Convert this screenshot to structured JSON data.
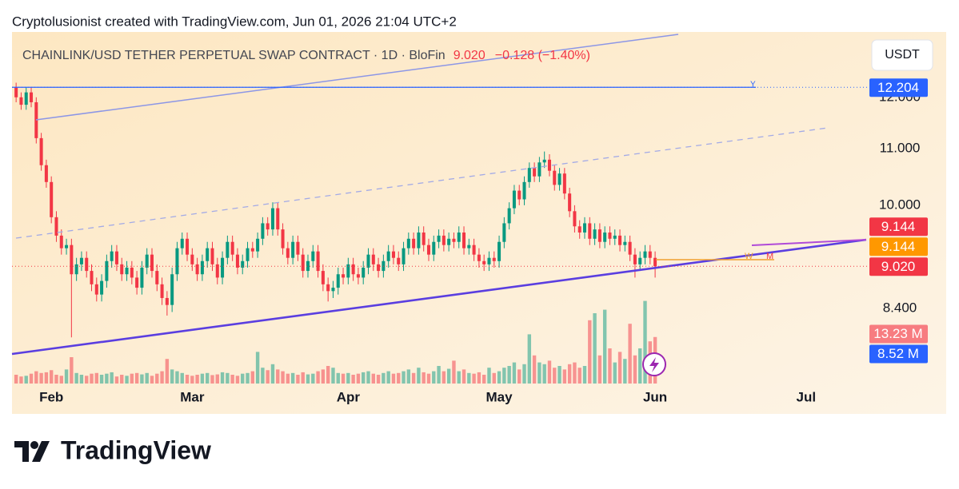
{
  "attribution": "Cryptolusionist created with TradingView.com, Jun 01, 2026 21:04 UTC+2",
  "brand": "TradingView",
  "currency_button": "USDT",
  "chart_data": {
    "type": "candlestick",
    "title": "CHAINLINK/USD TETHER PERPETUAL SWAP CONTRACT · 1D · BloFin",
    "last_price": "9.020",
    "change": "−0.128 (−1.40%)",
    "log_scale": true,
    "grid": false,
    "up_color": "#089981",
    "down_color": "#f23645",
    "xlim": [
      -0.5,
      168
    ],
    "xticks": [
      {
        "value": 7,
        "label": "Feb"
      },
      {
        "value": 35,
        "label": "Mar"
      },
      {
        "value": 66,
        "label": "Apr"
      },
      {
        "value": 96,
        "label": "May"
      },
      {
        "value": 127,
        "label": "Jun"
      },
      {
        "value": 157,
        "label": "Jul"
      }
    ],
    "ylim": [
      7.4,
      13.4
    ],
    "yticks": [
      {
        "value": 8.4,
        "label": "8.400"
      },
      {
        "value": 10,
        "label": "10.000"
      },
      {
        "value": 11,
        "label": "11.000"
      },
      {
        "value": 12,
        "label": "12.000"
      }
    ],
    "open": [
      12.2,
      12.0,
      11.85,
      12.1,
      11.9,
      11.2,
      10.7,
      10.4,
      9.8,
      9.5,
      9.3,
      9.35,
      8.9,
      9.05,
      9.15,
      8.95,
      8.75,
      8.6,
      8.8,
      9.1,
      9.25,
      9.05,
      8.9,
      9.0,
      8.85,
      8.7,
      9.0,
      9.2,
      8.95,
      8.75,
      8.55,
      8.45,
      8.9,
      9.3,
      9.45,
      9.2,
      9.05,
      8.9,
      9.1,
      9.3,
      9.05,
      8.85,
      9.15,
      9.4,
      9.2,
      9.0,
      9.1,
      9.3,
      9.25,
      9.45,
      9.7,
      9.6,
      9.95,
      9.6,
      9.3,
      9.15,
      9.4,
      9.2,
      8.95,
      9.1,
      9.25,
      8.95,
      8.75,
      8.65,
      8.7,
      8.9,
      8.85,
      9.05,
      8.9,
      8.85,
      9.0,
      9.2,
      9.05,
      8.95,
      9.1,
      9.25,
      9.15,
      9.05,
      9.3,
      9.45,
      9.3,
      9.55,
      9.35,
      9.2,
      9.4,
      9.5,
      9.35,
      9.45,
      9.4,
      9.55,
      9.3,
      9.35,
      9.2,
      9.1,
      9.05,
      9.15,
      9.1,
      9.4,
      9.7,
      9.95,
      10.25,
      10.1,
      10.4,
      10.65,
      10.5,
      10.75,
      10.8,
      10.6,
      10.35,
      10.55,
      10.2,
      9.9,
      9.65,
      9.55,
      9.7,
      9.45,
      9.6,
      9.4,
      9.55,
      9.45,
      9.5,
      9.35,
      9.4,
      9.2,
      9.05,
      9.15,
      9.25,
      9.15
    ],
    "high": [
      12.3,
      12.1,
      12.2,
      12.2,
      12.0,
      11.3,
      10.8,
      10.5,
      9.9,
      9.6,
      9.45,
      9.45,
      9.15,
      9.25,
      9.25,
      9.05,
      8.85,
      8.9,
      9.2,
      9.35,
      9.35,
      9.15,
      9.1,
      9.1,
      8.95,
      9.1,
      9.3,
      9.3,
      9.05,
      8.85,
      8.65,
      9.0,
      9.4,
      9.55,
      9.55,
      9.3,
      9.15,
      9.2,
      9.4,
      9.4,
      9.15,
      9.25,
      9.5,
      9.5,
      9.3,
      9.2,
      9.4,
      9.4,
      9.55,
      9.8,
      9.8,
      10.05,
      10.05,
      9.7,
      9.4,
      9.5,
      9.5,
      9.3,
      9.2,
      9.35,
      9.35,
      9.05,
      8.85,
      8.8,
      9.0,
      9.0,
      9.15,
      9.15,
      9.0,
      9.1,
      9.3,
      9.3,
      9.15,
      9.2,
      9.35,
      9.35,
      9.25,
      9.4,
      9.55,
      9.55,
      9.65,
      9.65,
      9.45,
      9.5,
      9.6,
      9.6,
      9.55,
      9.55,
      9.65,
      9.65,
      9.45,
      9.45,
      9.3,
      9.2,
      9.25,
      9.25,
      9.5,
      9.8,
      10.05,
      10.35,
      10.35,
      10.5,
      10.75,
      10.75,
      10.85,
      10.95,
      10.9,
      10.7,
      10.65,
      10.65,
      10.3,
      10.0,
      9.75,
      9.8,
      9.8,
      9.7,
      9.7,
      9.65,
      9.65,
      9.6,
      9.6,
      9.5,
      9.5,
      9.3,
      9.25,
      9.35,
      9.35,
      9.25
    ],
    "low": [
      11.9,
      11.75,
      11.75,
      11.8,
      11.1,
      10.6,
      10.3,
      9.7,
      9.4,
      9.2,
      9.2,
      8.0,
      8.8,
      8.95,
      8.85,
      8.65,
      8.5,
      8.5,
      8.7,
      9.0,
      8.95,
      8.8,
      8.8,
      8.75,
      8.6,
      8.6,
      8.9,
      8.85,
      8.65,
      8.45,
      8.3,
      8.35,
      8.8,
      9.2,
      9.1,
      8.95,
      8.8,
      8.8,
      9.0,
      8.95,
      8.75,
      8.75,
      9.05,
      9.1,
      8.9,
      8.9,
      9.0,
      9.15,
      9.15,
      9.35,
      9.5,
      9.5,
      9.5,
      9.2,
      9.05,
      9.05,
      9.1,
      8.85,
      8.85,
      9.0,
      8.85,
      8.65,
      8.5,
      8.55,
      8.6,
      8.75,
      8.75,
      8.8,
      8.75,
      8.75,
      8.9,
      8.95,
      8.85,
      8.85,
      9.0,
      9.05,
      8.95,
      8.95,
      9.2,
      9.2,
      9.2,
      9.25,
      9.1,
      9.1,
      9.3,
      9.25,
      9.25,
      9.3,
      9.3,
      9.2,
      9.2,
      9.1,
      9.0,
      8.95,
      8.95,
      9.0,
      9.0,
      9.3,
      9.6,
      9.85,
      10.0,
      10.0,
      10.3,
      10.4,
      10.4,
      10.65,
      10.5,
      10.25,
      10.25,
      10.1,
      9.8,
      9.55,
      9.45,
      9.45,
      9.35,
      9.35,
      9.3,
      9.3,
      9.35,
      9.35,
      9.25,
      9.25,
      9.1,
      8.85,
      8.95,
      9.05,
      9.05,
      8.85
    ],
    "close": [
      12.0,
      11.85,
      12.1,
      11.9,
      11.2,
      10.7,
      10.4,
      9.8,
      9.5,
      9.3,
      9.35,
      8.9,
      9.05,
      9.15,
      8.95,
      8.75,
      8.6,
      8.8,
      9.1,
      9.25,
      9.05,
      8.9,
      9.0,
      8.85,
      8.7,
      9.0,
      9.2,
      8.95,
      8.75,
      8.55,
      8.45,
      8.9,
      9.3,
      9.45,
      9.2,
      9.05,
      8.9,
      9.1,
      9.3,
      9.05,
      8.85,
      9.15,
      9.4,
      9.2,
      9.0,
      9.1,
      9.3,
      9.25,
      9.45,
      9.7,
      9.6,
      9.95,
      9.6,
      9.3,
      9.15,
      9.4,
      9.2,
      8.95,
      9.1,
      9.25,
      8.95,
      8.75,
      8.65,
      8.7,
      8.9,
      8.85,
      9.05,
      8.9,
      8.85,
      9.0,
      9.2,
      9.05,
      8.95,
      9.1,
      9.25,
      9.15,
      9.05,
      9.3,
      9.45,
      9.3,
      9.55,
      9.35,
      9.2,
      9.4,
      9.5,
      9.35,
      9.45,
      9.4,
      9.55,
      9.3,
      9.35,
      9.2,
      9.1,
      9.05,
      9.15,
      9.1,
      9.4,
      9.7,
      9.95,
      10.25,
      10.1,
      10.4,
      10.65,
      10.5,
      10.75,
      10.8,
      10.6,
      10.35,
      10.55,
      10.2,
      9.9,
      9.65,
      9.55,
      9.7,
      9.45,
      9.6,
      9.4,
      9.55,
      9.45,
      9.5,
      9.35,
      9.4,
      9.2,
      9.05,
      9.15,
      9.25,
      9.15,
      9.02
    ],
    "volume": [
      2.5,
      2.0,
      2.2,
      2.8,
      3.5,
      3.0,
      3.2,
      3.8,
      2.5,
      2.2,
      4.0,
      7.5,
      3.0,
      2.5,
      2.2,
      2.8,
      3.0,
      2.5,
      2.8,
      3.2,
      2.0,
      2.5,
      2.2,
      2.8,
      3.0,
      2.6,
      3.0,
      2.2,
      2.8,
      3.5,
      7.0,
      4.0,
      3.5,
      3.0,
      2.5,
      2.2,
      2.5,
      2.8,
      3.0,
      2.4,
      2.6,
      3.2,
      3.0,
      2.5,
      2.2,
      2.8,
      3.0,
      3.5,
      9.0,
      4.5,
      3.8,
      5.5,
      4.0,
      3.5,
      2.8,
      3.0,
      2.5,
      3.2,
      2.6,
      2.8,
      3.5,
      4.0,
      5.0,
      4.5,
      3.0,
      2.8,
      3.0,
      2.5,
      2.8,
      3.2,
      3.5,
      2.8,
      2.5,
      3.0,
      3.5,
      2.8,
      3.0,
      3.5,
      4.0,
      3.0,
      4.5,
      3.2,
      2.8,
      3.5,
      5.0,
      3.5,
      4.2,
      6.5,
      3.5,
      4.0,
      3.0,
      2.8,
      3.2,
      2.5,
      4.5,
      3.0,
      3.5,
      4.5,
      5.0,
      6.0,
      4.0,
      5.5,
      14.0,
      8.0,
      6.0,
      5.5,
      6.5,
      4.5,
      5.0,
      4.0,
      5.5,
      6.0,
      4.5,
      5.0,
      18.0,
      20.0,
      8.0,
      21.0,
      10.0,
      6.0,
      9.0,
      7.0,
      17.0,
      8.0,
      10.0,
      23.5,
      12.0,
      13.23
    ],
    "volume_ylim": [
      0,
      100
    ],
    "price_labels": [
      {
        "value": 12.204,
        "label": "12.204",
        "color": "#2962ff"
      },
      {
        "value": 9.144,
        "label": "9.144",
        "color": "#f23645"
      },
      {
        "value": 9.144,
        "label": "9.144",
        "color": "#ff9800"
      },
      {
        "value": 9.02,
        "label": "9.020",
        "color": "#f23645"
      }
    ],
    "volume_labels": [
      {
        "value": 13.23,
        "label": "13.23 M",
        "color": "#f77c80"
      },
      {
        "value": 8.52,
        "label": "8.52 M",
        "color": "#2962ff"
      }
    ],
    "annotations": [
      "Y",
      "W",
      "M"
    ]
  }
}
